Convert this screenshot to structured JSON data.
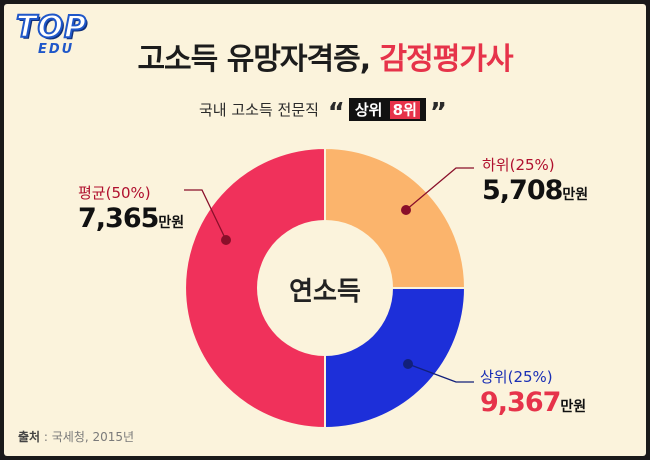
{
  "logo": {
    "top": "TOP",
    "edu": "EDU"
  },
  "header": {
    "title_main": "고소득 유망자격증, ",
    "title_accent": "감정평가사",
    "subtitle_prefix": "국내 고소득 전문직",
    "subtitle_badge": "상위",
    "subtitle_rank": "8위",
    "open_quote": "“",
    "close_quote": "”"
  },
  "chart_data": {
    "type": "pie",
    "center_label": "연소득",
    "unit": "만원",
    "slices": [
      {
        "label": "하위(25%)",
        "share": 25,
        "value": 5708,
        "value_text": "5,708",
        "color": "#fbb46c"
      },
      {
        "label": "상위(25%)",
        "share": 25,
        "value": 9367,
        "value_text": "9,367",
        "color": "#1d2fd9"
      },
      {
        "label": "평균(50%)",
        "share": 50,
        "value": 7365,
        "value_text": "7,365",
        "color": "#f0315b"
      }
    ]
  },
  "source": {
    "label": "출처",
    "text": " : 국세청, 2015년"
  },
  "colors": {
    "background": "#fbf3dc",
    "accent": "#e6334a",
    "leader": "#8a0f2a",
    "high_leader": "#12207a"
  }
}
